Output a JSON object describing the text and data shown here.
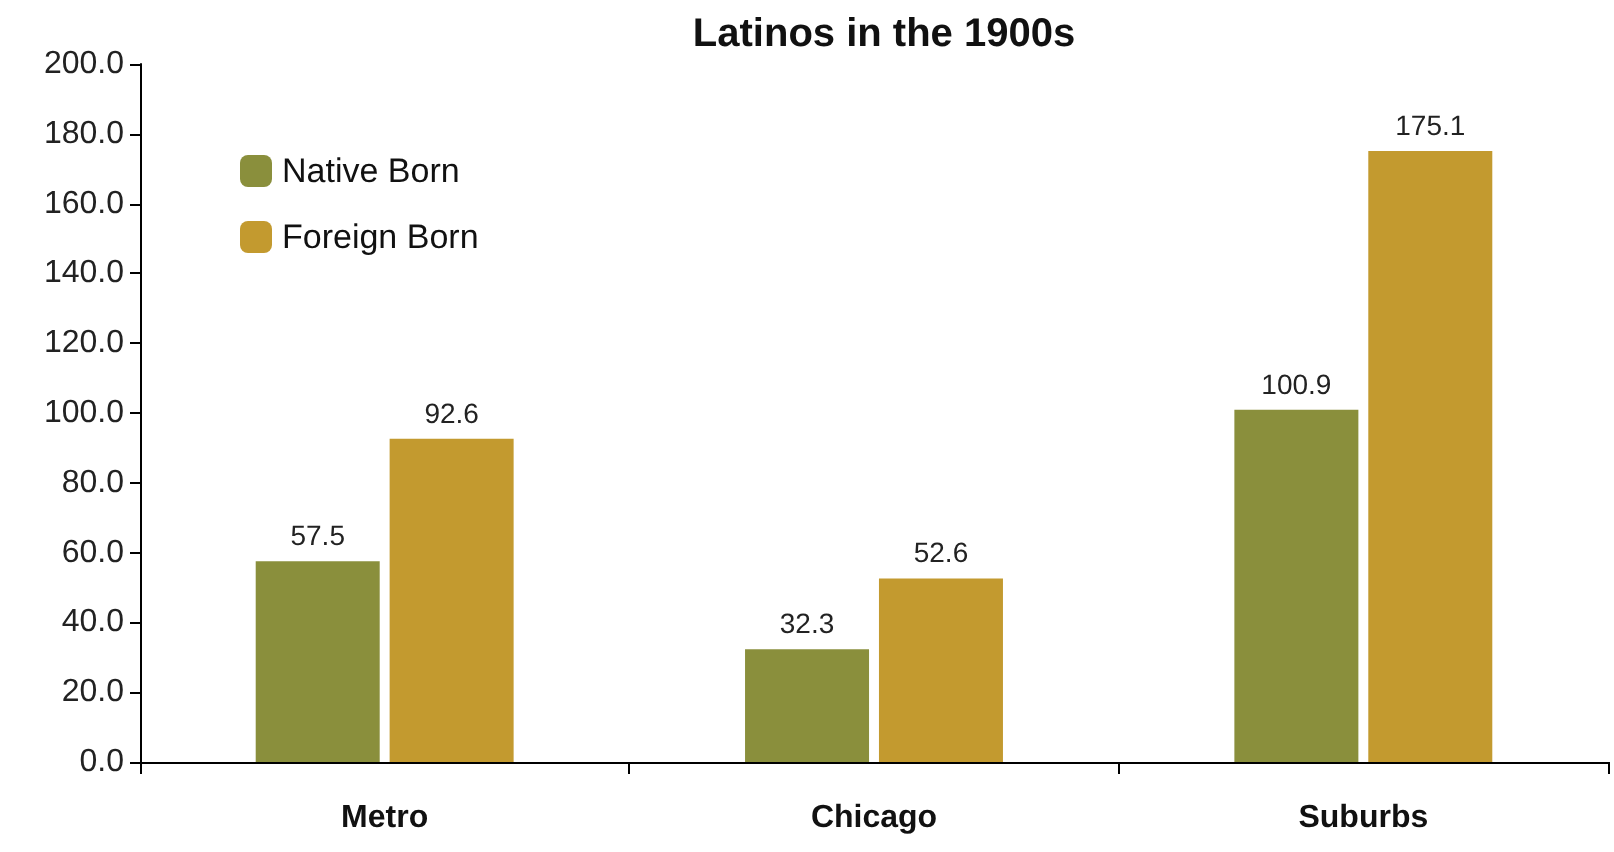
{
  "chart_data": {
    "type": "bar",
    "title": "Latinos in the 1900s",
    "categories": [
      "Metro",
      "Chicago",
      "Suburbs"
    ],
    "series": [
      {
        "name": "Native Born",
        "color": "#8a8f3c",
        "values": [
          57.5,
          32.3,
          100.9
        ]
      },
      {
        "name": "Foreign Born",
        "color": "#c39a2f",
        "values": [
          92.6,
          52.6,
          175.1
        ]
      }
    ],
    "ylim": [
      0,
      200
    ],
    "yticks": [
      {
        "value": 0,
        "label": "0.0"
      },
      {
        "value": 20,
        "label": "20.0"
      },
      {
        "value": 40,
        "label": "40.0"
      },
      {
        "value": 60,
        "label": "60.0"
      },
      {
        "value": 80,
        "label": "80.0"
      },
      {
        "value": 100,
        "label": "100.0"
      },
      {
        "value": 120,
        "label": "120.0"
      },
      {
        "value": 140,
        "label": "140.0"
      },
      {
        "value": 160,
        "label": "160.0"
      },
      {
        "value": 180,
        "label": "180.0"
      },
      {
        "value": 200,
        "label": "200.0"
      }
    ],
    "legend": "top left",
    "data_labels": true
  }
}
